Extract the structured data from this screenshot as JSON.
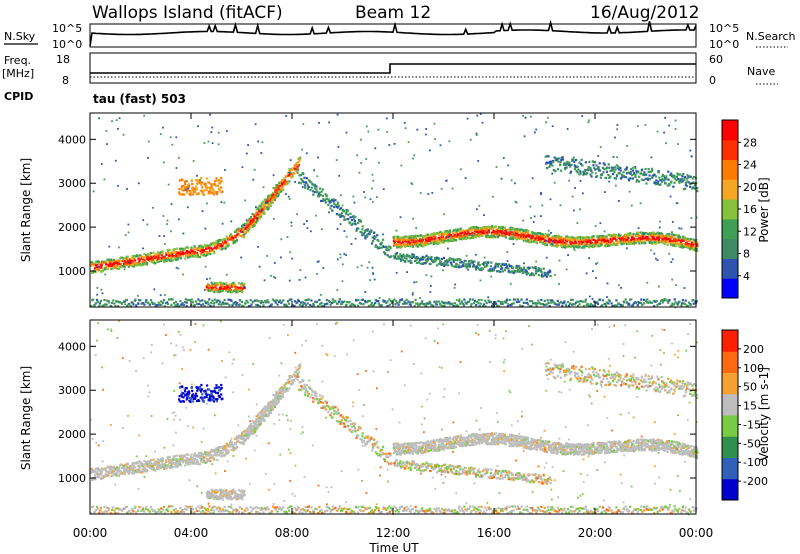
{
  "header": {
    "station": "Wallops Island (fitACF)",
    "beam": "Beam 12",
    "date": "16/Aug/2012"
  },
  "noise_panel": {
    "left_label": "N.Sky",
    "right_label": "N.Search",
    "tick_top": "10^5",
    "tick_bottom": "10^0",
    "right_tick_top": "10^5",
    "right_tick_bottom": "10^0"
  },
  "freq_panel": {
    "left_label": "Freq.",
    "left_unit": "[MHz]",
    "left_ticks": [
      "18",
      "8"
    ],
    "right_label": "Nave",
    "right_ticks": [
      "60",
      "0"
    ],
    "cpid_label": "CPID",
    "cpid_value": "tau (fast) 503"
  },
  "chart_data": [
    {
      "type": "heatmap",
      "name": "power",
      "ylabel": "Slant Range [km]",
      "ylim": [
        180,
        4600
      ],
      "yticks": [
        "1000",
        "2000",
        "3000",
        "4000"
      ],
      "colorbar_label": "Power [dB]",
      "colorbar_ticks": [
        "28",
        "24",
        "20",
        "16",
        "12",
        "8",
        "4"
      ],
      "colorbar_range": [
        0,
        30
      ]
    },
    {
      "type": "heatmap",
      "name": "velocity",
      "ylabel": "Slant Range [km]",
      "ylim": [
        180,
        4600
      ],
      "yticks": [
        "1000",
        "2000",
        "3000",
        "4000"
      ],
      "colorbar_label": "Velocity [m s-1]",
      "colorbar_ticks": [
        "200",
        "100",
        "50",
        "15",
        "-15",
        "-50",
        "-100",
        "-200"
      ]
    }
  ],
  "xaxis": {
    "label": "Time UT",
    "ticks": [
      "00:00",
      "04:00",
      "08:00",
      "12:00",
      "16:00",
      "20:00",
      "00:00"
    ]
  },
  "colors": {
    "power": [
      "#0000ff",
      "#2d55b0",
      "#3d8a65",
      "#3fa055",
      "#88c23a",
      "#f5a623",
      "#ff7a00",
      "#ff3000",
      "#ff0000"
    ],
    "velocity": [
      "#0000cc",
      "#3060b8",
      "#2f8f4f",
      "#77cc44",
      "#bdbdbd",
      "#f5a030",
      "#ff6a10",
      "#ff2000"
    ]
  }
}
